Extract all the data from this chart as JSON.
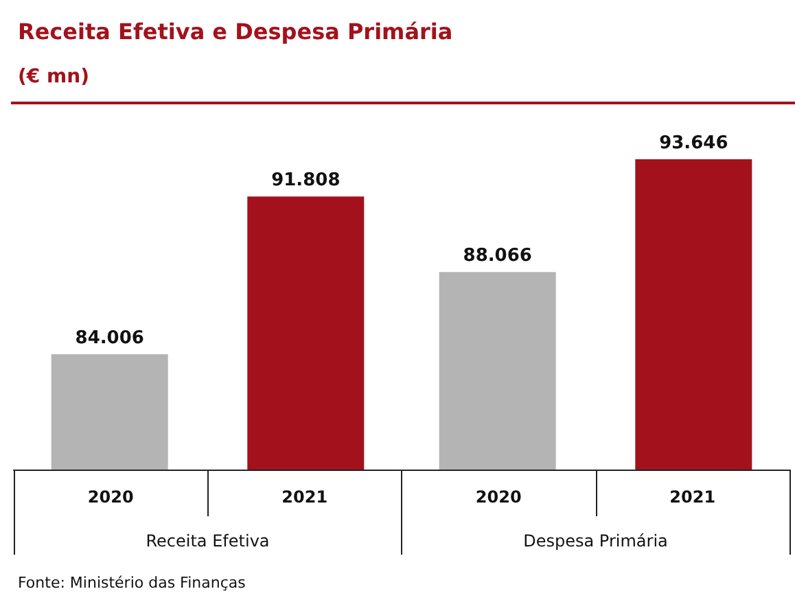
{
  "chart_data": {
    "type": "bar",
    "title": "Receita Efetiva e Despesa Primária",
    "subtitle": "(€ mn)",
    "categories": [
      "Receita Efetiva",
      "Despesa Primária"
    ],
    "series": [
      {
        "name": "2020",
        "color": "#b4b4b4",
        "values": [
          84006,
          88066
        ],
        "value_labels": [
          "84.006",
          "88.066"
        ]
      },
      {
        "name": "2021",
        "color": "#a3121c",
        "values": [
          91808,
          93646
        ],
        "value_labels": [
          "91.808",
          "93.646"
        ]
      }
    ],
    "ylim": [
      78300,
      93646
    ],
    "tick_labels": "x",
    "grid": false,
    "legend": false,
    "annotations": [
      "Fonte: Ministério das Finanças"
    ]
  }
}
